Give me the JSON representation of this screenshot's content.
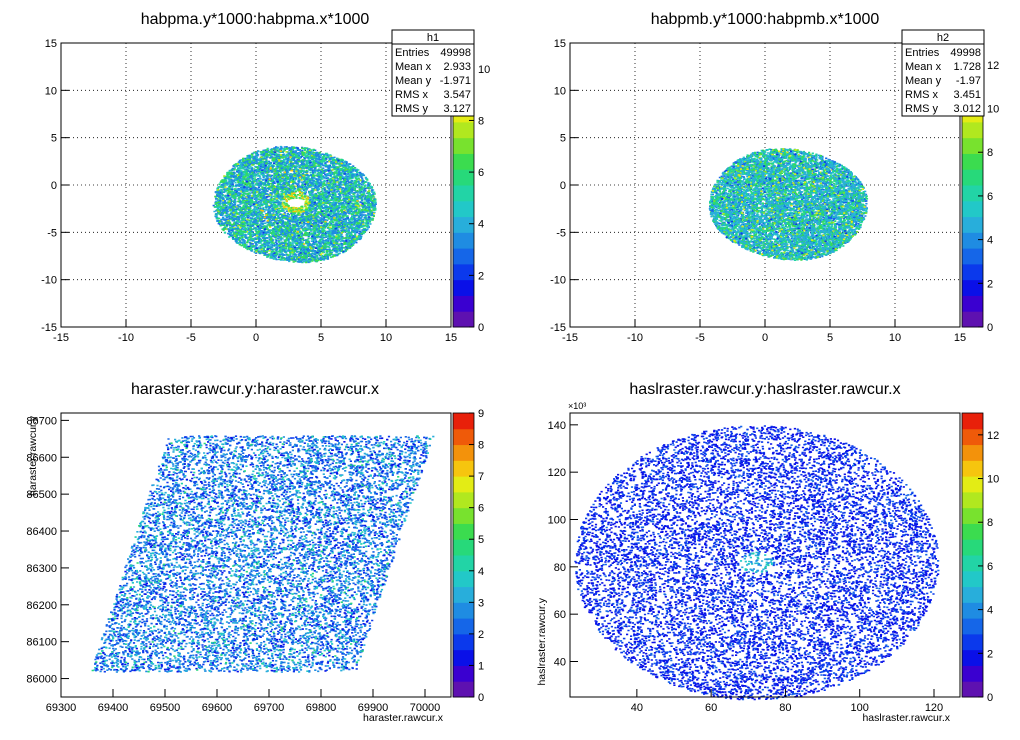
{
  "chart_data": [
    {
      "type": "heatmap",
      "title": "habpma.y*1000:habpma.x*1000",
      "xlabel": "",
      "ylabel": "",
      "xlim": [
        -15,
        15
      ],
      "ylim": [
        -15,
        15
      ],
      "xticks": [
        "-15",
        "-10",
        "-5",
        "0",
        "5",
        "10",
        "15"
      ],
      "yticks": [
        "-15",
        "-10",
        "-5",
        "0",
        "5",
        "10",
        "15"
      ],
      "zlim": [
        0,
        11
      ],
      "zticks": [
        "0",
        "2",
        "4",
        "6",
        "8",
        "10"
      ],
      "grid": true,
      "stats": {
        "name": "h1",
        "rows": [
          {
            "label": "Entries",
            "value": "49998"
          },
          {
            "label": "Mean x",
            "value": "2.933"
          },
          {
            "label": "Mean y",
            "value": "-1.971"
          },
          {
            "label": "RMS x",
            "value": "3.547"
          },
          {
            "label": "RMS y",
            "value": "3.127"
          }
        ]
      },
      "distribution": {
        "shape": "ellipse-with-hole",
        "center": [
          2.9,
          -1.97
        ],
        "rms": [
          3.55,
          3.13
        ],
        "hole_center": [
          3.0,
          -1.8
        ]
      }
    },
    {
      "type": "heatmap",
      "title": "habpmb.y*1000:habpmb.x*1000",
      "xlabel": "",
      "ylabel": "",
      "xlim": [
        -15,
        15
      ],
      "ylim": [
        -15,
        15
      ],
      "xticks": [
        "-15",
        "-10",
        "-5",
        "0",
        "5",
        "10",
        "15"
      ],
      "yticks": [
        "-15",
        "-10",
        "-5",
        "0",
        "5",
        "10",
        "15"
      ],
      "zlim": [
        0,
        13
      ],
      "zticks": [
        "0",
        "2",
        "4",
        "6",
        "8",
        "10",
        "12"
      ],
      "grid": true,
      "stats": {
        "name": "h2",
        "rows": [
          {
            "label": "Entries",
            "value": "49998"
          },
          {
            "label": "Mean x",
            "value": "1.728"
          },
          {
            "label": "Mean y",
            "value": "-1.97"
          },
          {
            "label": "RMS x",
            "value": "3.451"
          },
          {
            "label": "RMS y",
            "value": "3.012"
          }
        ]
      },
      "distribution": {
        "shape": "ellipse",
        "center": [
          1.73,
          -1.97
        ],
        "rms": [
          3.45,
          3.01
        ]
      }
    },
    {
      "type": "heatmap",
      "title": "haraster.rawcur.y:haraster.rawcur.x",
      "xlabel": "haraster.rawcur.x",
      "ylabel": "haraster.rawcur.y",
      "xlim": [
        69300,
        70050
      ],
      "ylim": [
        85950,
        86720
      ],
      "xticks": [
        "69300",
        "69400",
        "69500",
        "69600",
        "69700",
        "69800",
        "69900",
        "70000"
      ],
      "yticks": [
        "86000",
        "86100",
        "86200",
        "86300",
        "86400",
        "86500",
        "86600",
        "86700"
      ],
      "zlim": [
        0,
        9
      ],
      "zticks": [
        "0",
        "1",
        "2",
        "3",
        "4",
        "5",
        "6",
        "7",
        "8",
        "9"
      ],
      "grid": false,
      "distribution": {
        "shape": "parallelogram",
        "x_range": [
          69370,
          70000
        ],
        "y_range": [
          86020,
          86660
        ]
      }
    },
    {
      "type": "heatmap",
      "title": "haslraster.rawcur.y:haslraster.rawcur.x",
      "xlabel": "haslraster.rawcur.x",
      "ylabel": "haslraster.rawcur.y",
      "yexponent": "×10³",
      "xlim": [
        22,
        127
      ],
      "ylim": [
        25,
        145
      ],
      "xticks": [
        "40",
        "60",
        "80",
        "100",
        "120"
      ],
      "yticks": [
        "40",
        "60",
        "80",
        "100",
        "120",
        "140"
      ],
      "zlim": [
        0,
        13
      ],
      "zticks": [
        "0",
        "2",
        "4",
        "6",
        "8",
        "10",
        "12"
      ],
      "grid": false,
      "distribution": {
        "shape": "disc",
        "center": [
          72,
          82
        ],
        "radius": [
          49,
          58
        ],
        "hot_spot": [
          72,
          82
        ]
      }
    }
  ],
  "palette": [
    "#5e11b0",
    "#3a00d0",
    "#0a10e8",
    "#0b39ec",
    "#1566e8",
    "#1f8ce2",
    "#28aedb",
    "#22c8c8",
    "#22d4a6",
    "#27d97a",
    "#3bdc4f",
    "#78e22e",
    "#b1e81f",
    "#e3ec15",
    "#f6c50e",
    "#f3920b",
    "#ef5a09",
    "#e8200a"
  ]
}
